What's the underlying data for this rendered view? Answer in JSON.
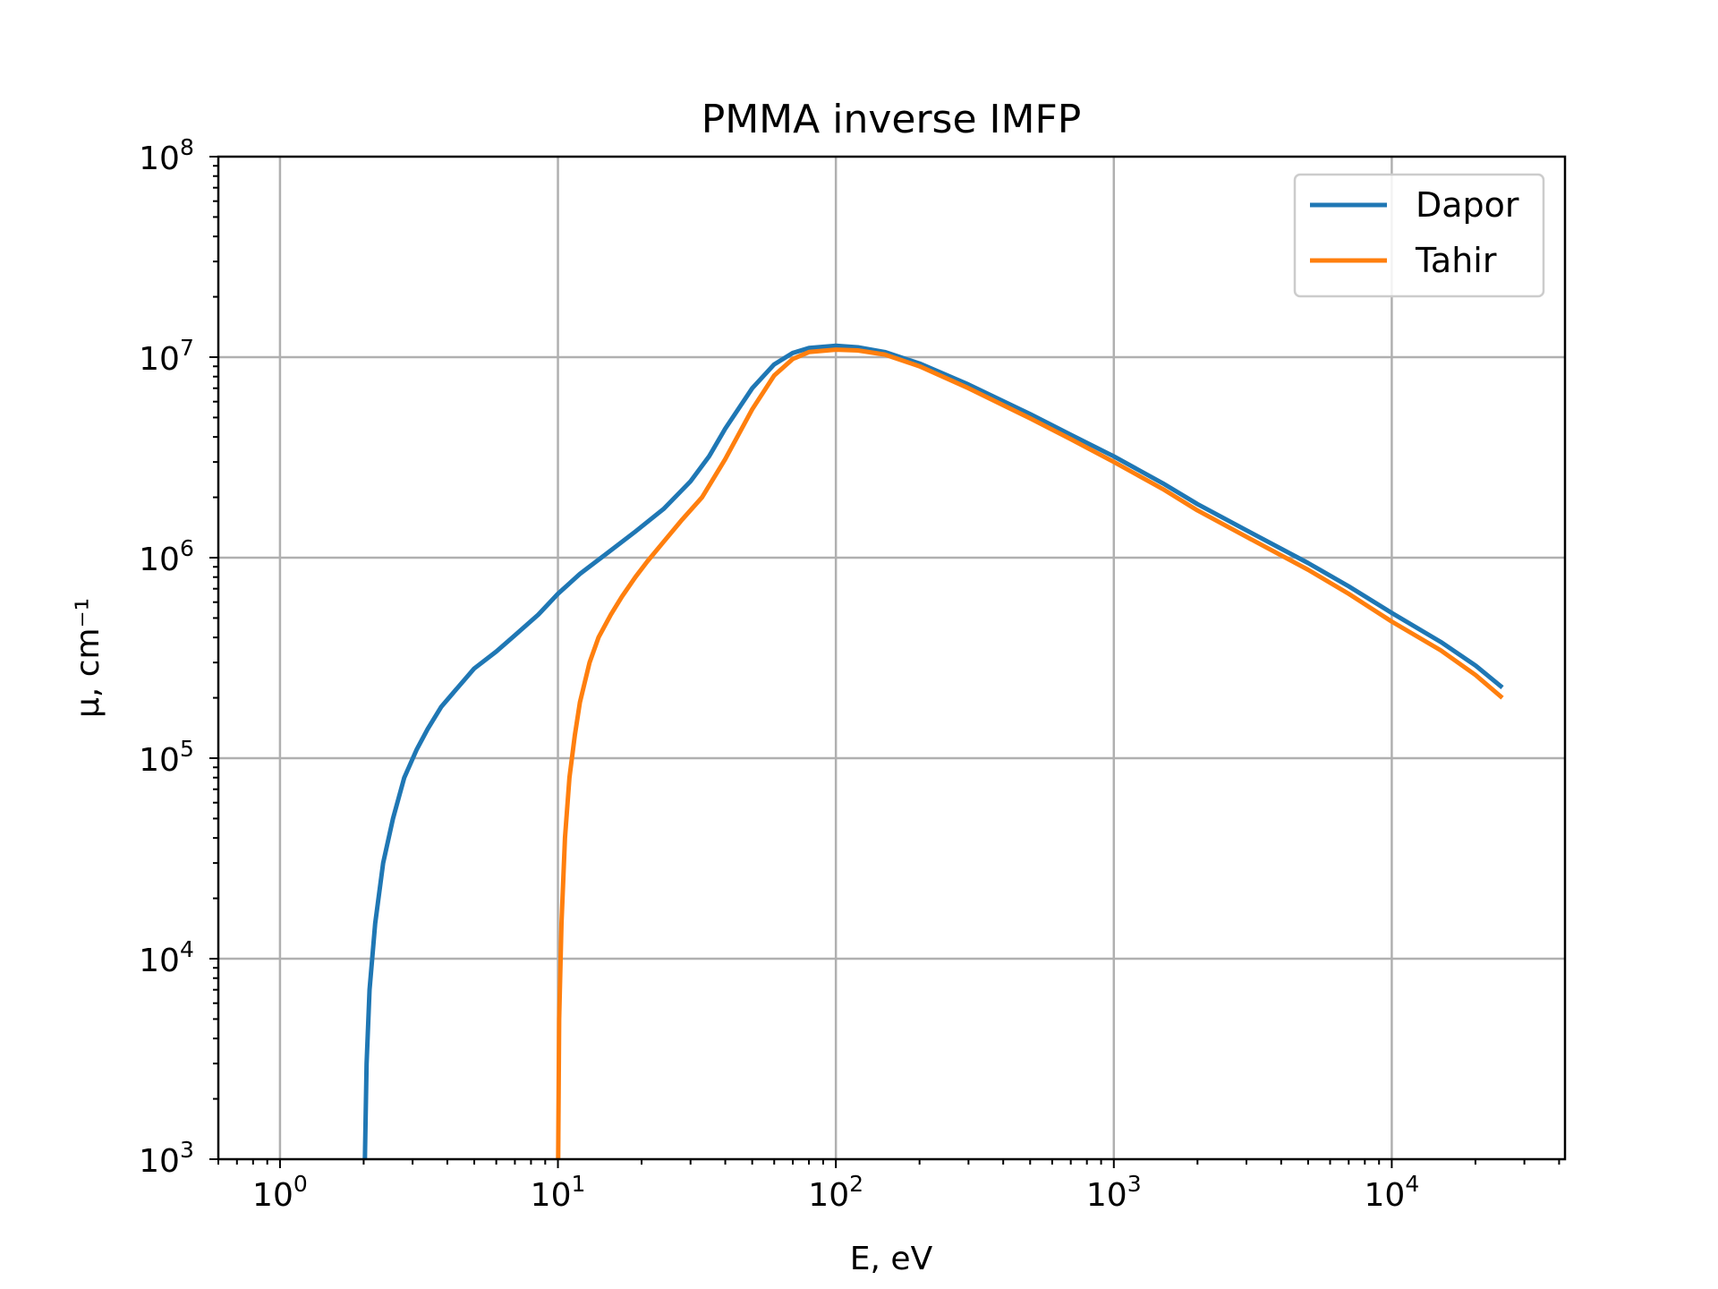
{
  "chart_data": {
    "type": "line",
    "title": "PMMA inverse IMFP",
    "xlabel": "E, eV",
    "ylabel": "μ, cm⁻¹",
    "xscale": "log",
    "yscale": "log",
    "xlim": [
      0.6,
      42000
    ],
    "ylim": [
      1000,
      100000000
    ],
    "x_ticks": [
      {
        "value": 1,
        "base": "10",
        "exp": "0"
      },
      {
        "value": 10,
        "base": "10",
        "exp": "1"
      },
      {
        "value": 100,
        "base": "10",
        "exp": "2"
      },
      {
        "value": 1000,
        "base": "10",
        "exp": "3"
      },
      {
        "value": 10000,
        "base": "10",
        "exp": "4"
      }
    ],
    "y_ticks": [
      {
        "value": 1000,
        "base": "10",
        "exp": "3"
      },
      {
        "value": 10000,
        "base": "10",
        "exp": "4"
      },
      {
        "value": 100000,
        "base": "10",
        "exp": "5"
      },
      {
        "value": 1000000,
        "base": "10",
        "exp": "6"
      },
      {
        "value": 10000000,
        "base": "10",
        "exp": "7"
      },
      {
        "value": 100000000,
        "base": "10",
        "exp": "8"
      }
    ],
    "grid": true,
    "legend": "top-right",
    "series": [
      {
        "name": "Dapor",
        "color": "#1f77b4",
        "x": [
          2.02,
          2.05,
          2.1,
          2.2,
          2.35,
          2.55,
          2.8,
          3.1,
          3.4,
          3.8,
          4.3,
          5,
          6,
          7,
          8.5,
          10,
          12,
          15,
          19,
          24,
          30,
          35,
          40,
          50,
          60,
          70,
          80,
          100,
          120,
          150,
          200,
          300,
          500,
          700,
          1000,
          1500,
          2000,
          3000,
          5000,
          7000,
          10000,
          15000,
          20000,
          25000
        ],
        "y": [
          1000,
          3000,
          7000,
          15000,
          30000,
          50000,
          80000,
          110000,
          140000,
          180000,
          220000,
          280000,
          340000,
          410000,
          520000,
          660000,
          830000,
          1050000,
          1350000,
          1750000,
          2400000,
          3200000,
          4400000,
          7000000,
          9200000,
          10500000,
          11100000,
          11400000,
          11200000,
          10600000,
          9300000,
          7300000,
          5200000,
          4100000,
          3200000,
          2350000,
          1850000,
          1370000,
          940000,
          720000,
          530000,
          380000,
          290000,
          225000
        ]
      },
      {
        "name": "Tahir",
        "color": "#ff7f0e",
        "x": [
          10.02,
          10.1,
          10.3,
          10.6,
          11,
          11.5,
          12,
          13,
          14,
          15.5,
          17,
          19,
          21,
          24,
          28,
          33,
          40,
          50,
          60,
          70,
          80,
          100,
          120,
          150,
          200,
          300,
          500,
          700,
          1000,
          1500,
          2000,
          3000,
          5000,
          7000,
          10000,
          15000,
          20000,
          25000
        ],
        "y": [
          1000,
          5000,
          15000,
          40000,
          80000,
          130000,
          190000,
          300000,
          400000,
          520000,
          640000,
          800000,
          960000,
          1200000,
          1550000,
          2000000,
          3100000,
          5500000,
          8100000,
          9800000,
          10600000,
          10900000,
          10800000,
          10300000,
          9000000,
          7000000,
          4950000,
          3900000,
          3000000,
          2200000,
          1720000,
          1270000,
          870000,
          660000,
          480000,
          345000,
          260000,
          200000
        ]
      }
    ]
  }
}
